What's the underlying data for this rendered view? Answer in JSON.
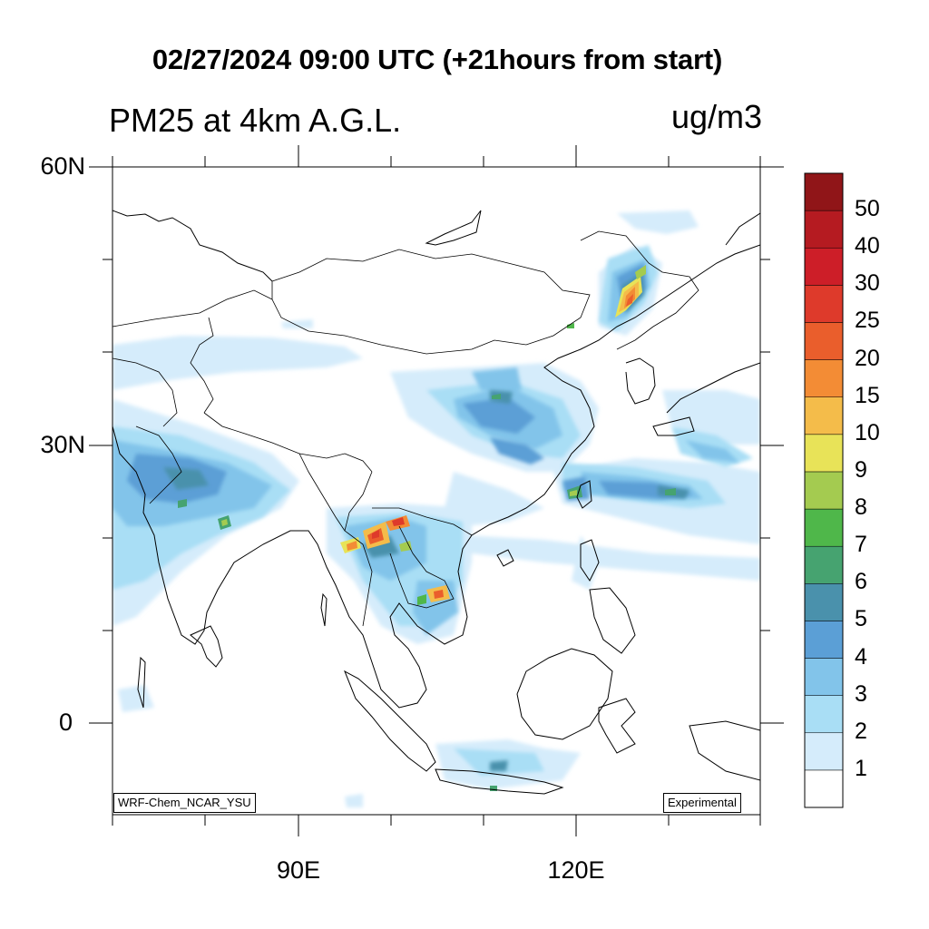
{
  "header": {
    "title": "02/27/2024 09:00 UTC (+21hours from start)",
    "variable": "PM25 at 4km A.G.L.",
    "units": "ug/m3"
  },
  "map": {
    "projection": "lat-lon",
    "extent": {
      "lon_min": 70,
      "lon_max": 140,
      "lat_min": -10,
      "lat_max": 60
    },
    "lat_labels": [
      {
        "lat": 60,
        "text": "60N"
      },
      {
        "lat": 30,
        "text": "30N"
      },
      {
        "lat": 0,
        "text": "0"
      }
    ],
    "lon_labels": [
      {
        "lon": 90,
        "text": "90E"
      },
      {
        "lon": 120,
        "text": "120E"
      }
    ],
    "credit": "WRF-Chem_NCAR_YSU",
    "flag": "Experimental",
    "field_regions": [
      {
        "name": "northeast-china-plume",
        "peak_level": "25"
      },
      {
        "name": "north-china-plain",
        "peak_level": "6"
      },
      {
        "name": "indo-gangetic-plain",
        "peak_level": "8"
      },
      {
        "name": "myanmar-laos-burning",
        "peak_level": "25"
      },
      {
        "name": "cambodia",
        "peak_level": "15"
      },
      {
        "name": "taiwan-east-china-sea",
        "peak_level": "7"
      },
      {
        "name": "java",
        "peak_level": "6"
      }
    ]
  },
  "colorbar": {
    "levels": [
      "1",
      "2",
      "3",
      "4",
      "5",
      "6",
      "7",
      "8",
      "9",
      "10",
      "15",
      "20",
      "25",
      "30",
      "40",
      "50"
    ],
    "colors": [
      "#ffffff",
      "#d5ecfb",
      "#a9def5",
      "#82c4ea",
      "#5b9fd6",
      "#4a91ac",
      "#46a370",
      "#4fb74a",
      "#a4cb50",
      "#e8e358",
      "#f4bc4a",
      "#f38c35",
      "#ea5e2c",
      "#de3a2b",
      "#cd1e28",
      "#b51b21",
      "#901518"
    ]
  }
}
